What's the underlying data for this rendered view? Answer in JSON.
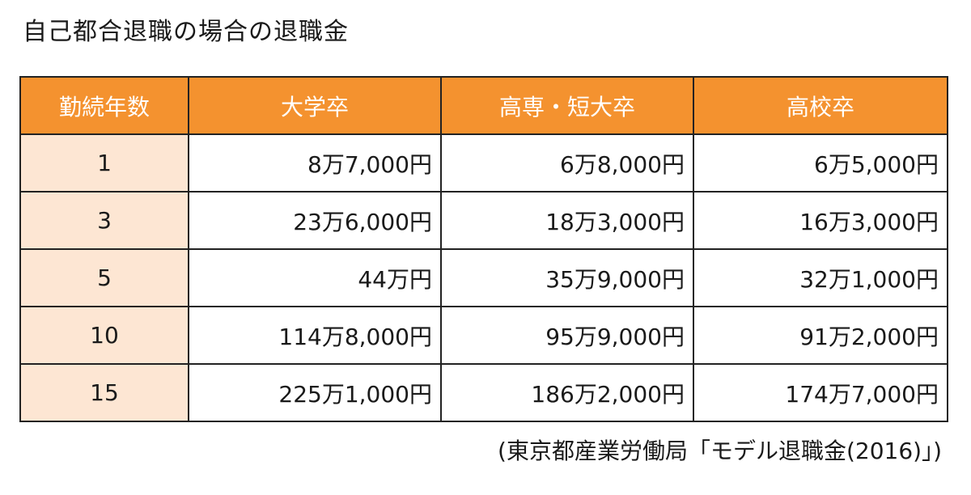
{
  "title": "自己都合退職の場合の退職金",
  "table": {
    "headers": [
      "勤続年数",
      "大学卒",
      "高専・短大卒",
      "高校卒"
    ],
    "rows": [
      {
        "years": "1",
        "university": "8万7,000円",
        "technical_junior": "6万8,000円",
        "high_school": "6万5,000円"
      },
      {
        "years": "3",
        "university": "23万6,000円",
        "technical_junior": "18万3,000円",
        "high_school": "16万3,000円"
      },
      {
        "years": "5",
        "university": "44万円",
        "technical_junior": "35万9,000円",
        "high_school": "32万1,000円"
      },
      {
        "years": "10",
        "university": "114万8,000円",
        "technical_junior": "95万9,000円",
        "high_school": "91万2,000円"
      },
      {
        "years": "15",
        "university": "225万1,000円",
        "technical_junior": "186万2,000円",
        "high_school": "174万7,000円"
      }
    ]
  },
  "source": "(東京都産業労働局「モデル退職金(2016)」)",
  "colors": {
    "header_bg": "#f4922f",
    "years_bg": "#fde6d3",
    "border": "#222222"
  }
}
